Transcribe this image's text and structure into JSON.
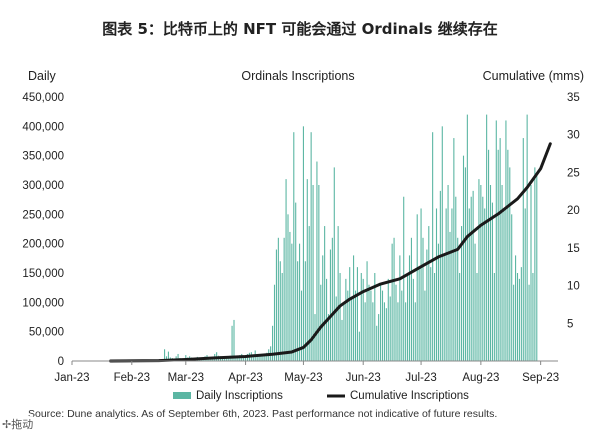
{
  "figure_title": "图表 5：比特币上的 NFT 可能会通过 Ordinals 继续存在",
  "source_note": "Source: Dune analytics. As of September 6th, 2023. Past performance not indicative of future results.",
  "drag_hint": "拖动",
  "chart_data": {
    "type": "bar+line",
    "title": "Ordinals Inscriptions",
    "left_axis_label": "Daily",
    "right_axis_label": "Cumulative (mms)",
    "y_left_ticks": [
      "0",
      "50,000",
      "100,000",
      "150,000",
      "200,000",
      "250,000",
      "300,000",
      "350,000",
      "400,000",
      "450,000"
    ],
    "y_right_ticks": [
      "5",
      "10",
      "15",
      "20",
      "25",
      "30",
      "35"
    ],
    "ylim_left": [
      0,
      450000
    ],
    "ylim_right": [
      0,
      35
    ],
    "x_tick_labels": [
      "Jan-23",
      "Feb-23",
      "Mar-23",
      "Apr-23",
      "May-23",
      "Jun-23",
      "Jul-23",
      "Aug-23",
      "Sep-23"
    ],
    "legend": [
      "Daily Inscriptions",
      "Cumulative Inscriptions"
    ],
    "colors": {
      "bar": "#5bb6a3",
      "line": "#1a1a1a"
    },
    "daily_series": {
      "name": "Daily Inscriptions",
      "x_start": "2023-01-21",
      "values": [
        0,
        0,
        0,
        0,
        0,
        0,
        0,
        0,
        0,
        0,
        0,
        0,
        0,
        0,
        0,
        0,
        0,
        0,
        0,
        0,
        0,
        0,
        0,
        0,
        0,
        1000,
        2000,
        3000,
        20000,
        8000,
        16000,
        6000,
        5000,
        3000,
        8000,
        12000,
        5000,
        4000,
        3000,
        10000,
        6000,
        8000,
        6000,
        4000,
        5000,
        7000,
        6000,
        5000,
        4000,
        8000,
        10000,
        5000,
        6000,
        5000,
        12000,
        15000,
        9000,
        8000,
        7000,
        8000,
        6000,
        5000,
        9000,
        60000,
        70000,
        5000,
        6000,
        10000,
        12000,
        8000,
        10000,
        12000,
        14000,
        15000,
        9000,
        18000,
        7000,
        8000,
        10000,
        12000,
        9000,
        14000,
        20000,
        25000,
        60000,
        130000,
        190000,
        210000,
        170000,
        150000,
        210000,
        310000,
        250000,
        220000,
        200000,
        390000,
        270000,
        170000,
        200000,
        120000,
        400000,
        170000,
        310000,
        230000,
        390000,
        300000,
        80000,
        340000,
        300000,
        130000,
        180000,
        230000,
        140000,
        80000,
        190000,
        210000,
        330000,
        110000,
        230000,
        150000,
        70000,
        100000,
        140000,
        120000,
        160000,
        110000,
        180000,
        120000,
        160000,
        50000,
        150000,
        140000,
        100000,
        170000,
        130000,
        120000,
        100000,
        150000,
        60000,
        80000,
        130000,
        120000,
        100000,
        90000,
        140000,
        110000,
        200000,
        210000,
        130000,
        100000,
        180000,
        120000,
        280000,
        100000,
        150000,
        180000,
        210000,
        140000,
        100000,
        250000,
        160000,
        260000,
        210000,
        120000,
        190000,
        230000,
        160000,
        390000,
        150000,
        260000,
        200000,
        290000,
        400000,
        180000,
        260000,
        300000,
        220000,
        260000,
        380000,
        280000,
        210000,
        150000,
        230000,
        350000,
        330000,
        420000,
        260000,
        280000,
        290000,
        200000,
        150000,
        310000,
        300000,
        280000,
        260000,
        420000,
        360000,
        300000,
        270000,
        150000,
        410000,
        360000,
        380000,
        300000,
        260000,
        410000,
        360000,
        330000,
        250000,
        130000,
        180000,
        150000,
        140000,
        160000,
        380000,
        260000,
        420000,
        130000,
        300000,
        150000,
        330000,
        320000
      ]
    },
    "cumulative_series": {
      "name": "Cumulative Inscriptions",
      "points": [
        [
          "2023-01-21",
          0
        ],
        [
          "2023-02-15",
          0.05
        ],
        [
          "2023-03-01",
          0.2
        ],
        [
          "2023-03-15",
          0.4
        ],
        [
          "2023-04-01",
          0.6
        ],
        [
          "2023-04-15",
          0.9
        ],
        [
          "2023-04-25",
          1.2
        ],
        [
          "2023-05-01",
          1.8
        ],
        [
          "2023-05-05",
          2.8
        ],
        [
          "2023-05-10",
          4.5
        ],
        [
          "2023-05-15",
          5.9
        ],
        [
          "2023-05-20",
          7.3
        ],
        [
          "2023-05-25",
          8.2
        ],
        [
          "2023-06-01",
          9.2
        ],
        [
          "2023-06-10",
          10.2
        ],
        [
          "2023-06-20",
          10.9
        ],
        [
          "2023-07-01",
          12.5
        ],
        [
          "2023-07-10",
          13.8
        ],
        [
          "2023-07-20",
          14.8
        ],
        [
          "2023-07-25",
          16.5
        ],
        [
          "2023-08-01",
          18.0
        ],
        [
          "2023-08-10",
          19.5
        ],
        [
          "2023-08-20",
          21.5
        ],
        [
          "2023-08-25",
          23.0
        ],
        [
          "2023-09-01",
          25.5
        ],
        [
          "2023-09-06",
          28.8
        ]
      ]
    }
  }
}
